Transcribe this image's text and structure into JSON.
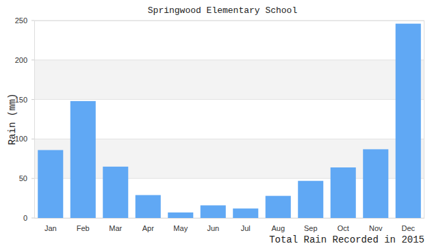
{
  "chart_data": {
    "type": "bar",
    "title": "Springwood Elementary School",
    "y_label": "Rain (mm)",
    "x_label": "Total Rain Recorded in 2015",
    "categories": [
      "Jan",
      "Feb",
      "Mar",
      "Apr",
      "May",
      "Jun",
      "Jul",
      "Aug",
      "Sep",
      "Oct",
      "Nov",
      "Dec"
    ],
    "values": [
      86,
      148,
      65,
      29,
      7,
      16,
      12,
      28,
      47,
      64,
      87,
      246
    ],
    "color": "#60a8f4",
    "ylim": [
      0,
      250
    ],
    "yticks": [
      0,
      50,
      100,
      150,
      200,
      250
    ],
    "grid": true
  }
}
